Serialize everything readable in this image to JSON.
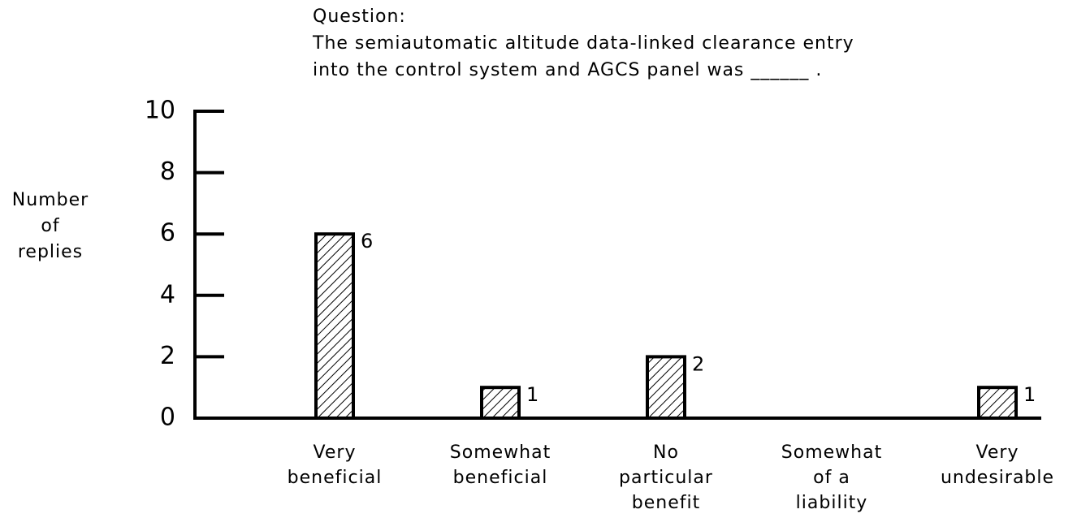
{
  "chart_data": {
    "type": "bar",
    "title": [
      "Question:",
      "The semiautomatic altitude data-linked clearance entry",
      "into the control system and AGCS panel was ______ ."
    ],
    "ylabel": [
      "Number",
      "of",
      "replies"
    ],
    "categories": [
      [
        "Very",
        "beneficial"
      ],
      [
        "Somewhat",
        "beneficial"
      ],
      [
        "No",
        "particular",
        "benefit"
      ],
      [
        "Somewhat",
        "of a",
        "liability"
      ],
      [
        "Very",
        "undesirable"
      ]
    ],
    "values": [
      6,
      1,
      2,
      0,
      1
    ],
    "value_labels": [
      "6",
      "1",
      "2",
      null,
      "1"
    ],
    "color": "#000000",
    "ylim": [
      0,
      10
    ],
    "yticks": [
      0,
      2,
      4,
      6,
      8,
      10
    ],
    "grid": false
  }
}
